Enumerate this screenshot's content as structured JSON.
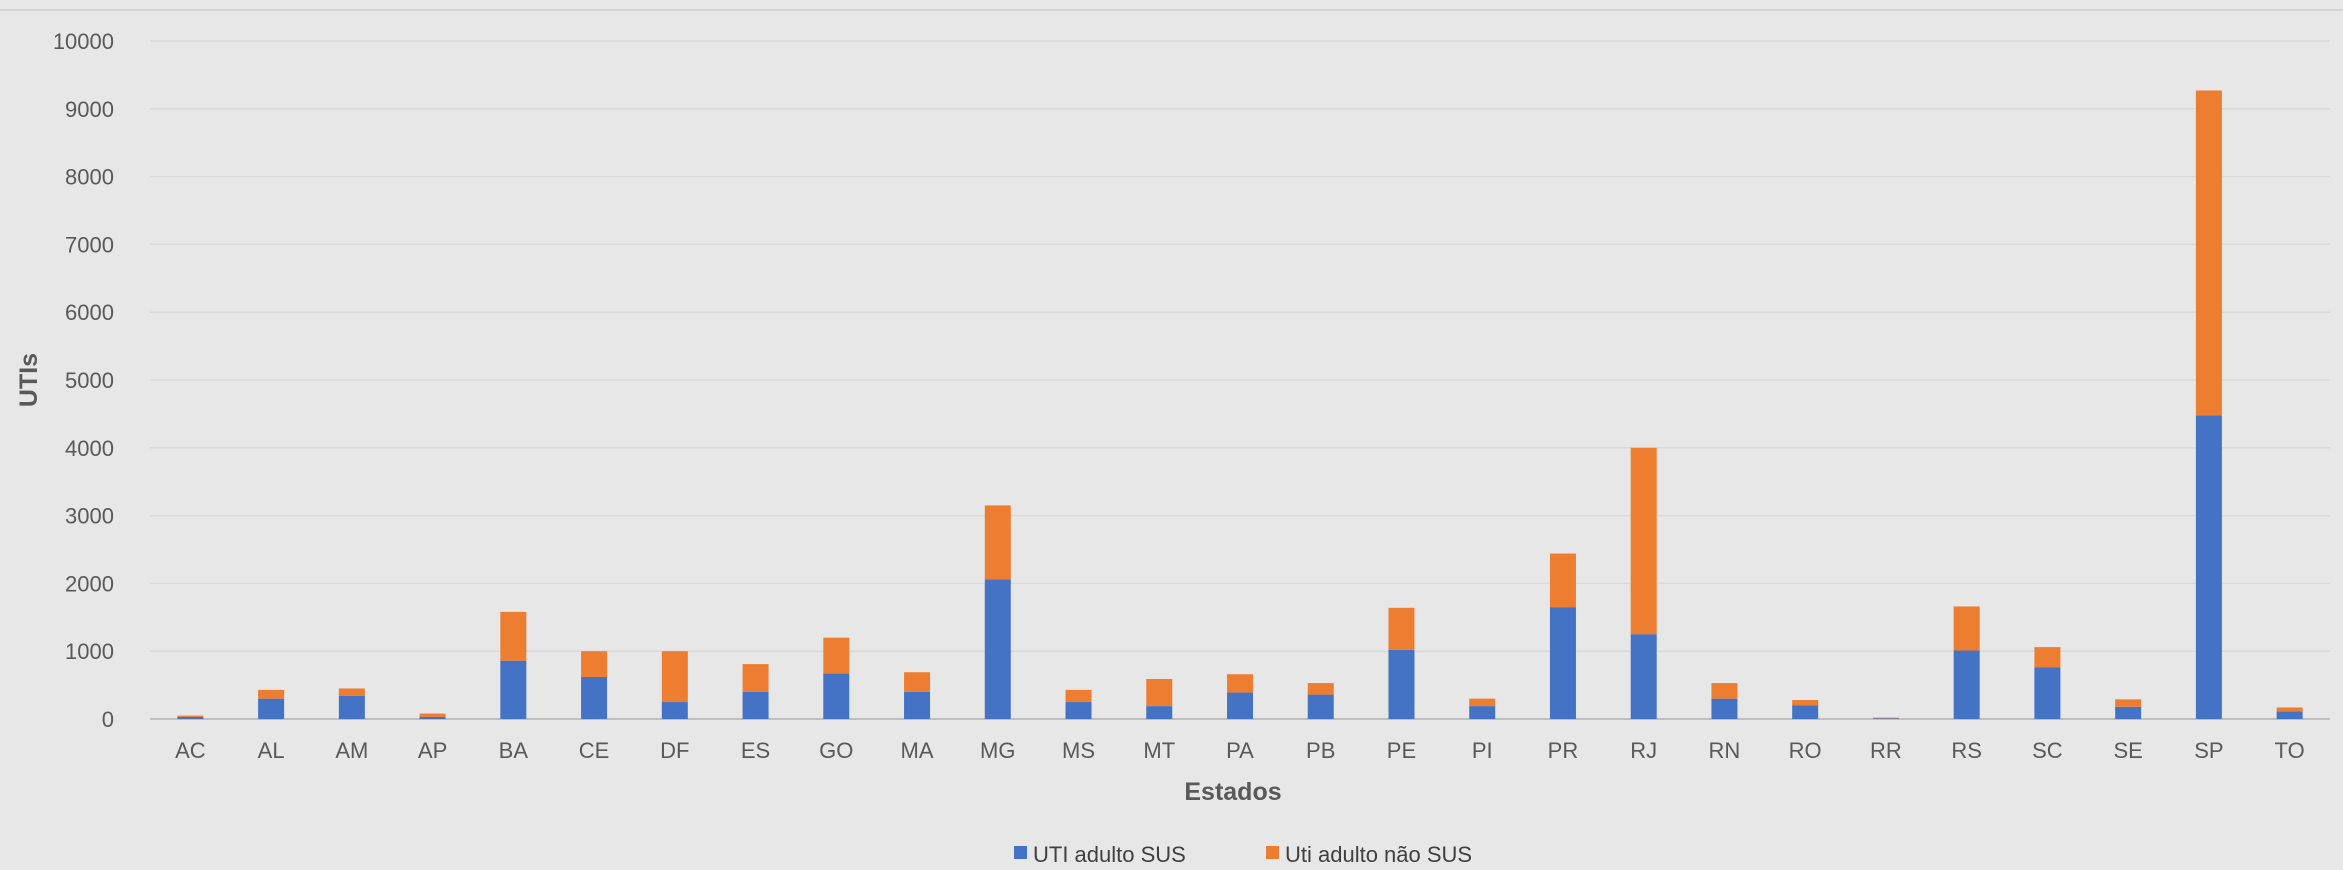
{
  "chart_data": {
    "type": "bar",
    "stacked": true,
    "xlabel": "Estados",
    "ylabel": "UTIs",
    "ylim": [
      0,
      10000
    ],
    "yticks": [
      0,
      1000,
      2000,
      3000,
      4000,
      5000,
      6000,
      7000,
      8000,
      9000,
      10000
    ],
    "grid": true,
    "legend_position": "bottom",
    "categories": [
      "AC",
      "AL",
      "AM",
      "AP",
      "BA",
      "CE",
      "DF",
      "ES",
      "GO",
      "MA",
      "MG",
      "MS",
      "MT",
      "PA",
      "PB",
      "PE",
      "PI",
      "PR",
      "RJ",
      "RN",
      "RO",
      "RR",
      "RS",
      "SC",
      "SE",
      "SP",
      "TO"
    ],
    "series": [
      {
        "name": "UTI adulto SUS",
        "color": "#4472c4",
        "values": [
          30,
          300,
          340,
          30,
          860,
          620,
          250,
          400,
          670,
          400,
          2060,
          250,
          190,
          390,
          360,
          1020,
          190,
          1650,
          1250,
          300,
          200,
          10,
          1010,
          760,
          180,
          4480,
          110
        ]
      },
      {
        "name": "Uti adulto não SUS",
        "color": "#ed7d31",
        "values": [
          20,
          130,
          110,
          50,
          720,
          380,
          750,
          410,
          530,
          290,
          1090,
          180,
          400,
          270,
          170,
          620,
          110,
          790,
          2750,
          230,
          80,
          10,
          650,
          300,
          110,
          4790,
          60
        ]
      }
    ]
  }
}
